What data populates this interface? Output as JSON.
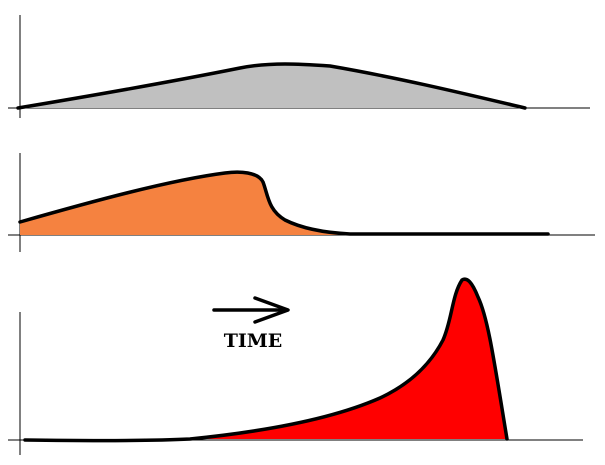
{
  "annotation": {
    "label": "TIME",
    "arrow_icon": "right-arrow-icon"
  },
  "colors": {
    "background": "#ffffff",
    "axis": "#000000",
    "outline": "#000000",
    "wave_top": "#c0c0c0",
    "wave_middle": "#f58240",
    "wave_bottom": "#ff0000"
  }
}
